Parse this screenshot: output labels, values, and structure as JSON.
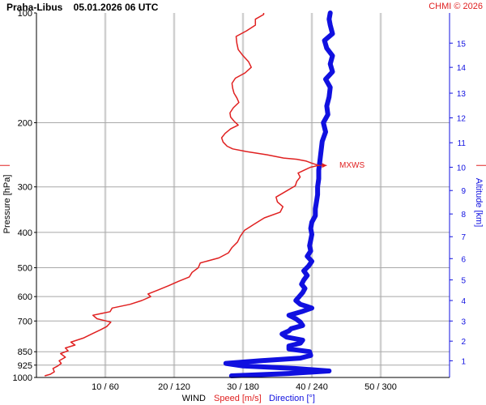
{
  "header": {
    "station_time": "Praha-Libus    05.01.2026 06 UTC",
    "copyright": "CHMI © 2026"
  },
  "colors": {
    "speed": "#e02020",
    "direction": "#1010e0",
    "grid": "#a8a8a8",
    "vgrid": "#d0d0d0"
  },
  "chart_data": {
    "type": "line",
    "title": "Praha-Libus    05.01.2026 06 UTC",
    "pressure_axis": {
      "label": "Pressure [hPa]",
      "scale": "log",
      "range": [
        1000,
        100
      ],
      "ticks": [
        100,
        200,
        300,
        400,
        500,
        600,
        700,
        850,
        925,
        1000
      ],
      "tick_labels": [
        "100",
        "200",
        "300",
        "400",
        "500",
        "600",
        "700",
        "850",
        "925",
        "1000"
      ]
    },
    "wind_axis": {
      "label": "WIND",
      "speed_label": "Speed [m/s]",
      "direction_label": "Direction [°]",
      "speed_range": [
        0,
        60
      ],
      "direction_range": [
        0,
        360
      ],
      "ticks_speed": [
        10,
        20,
        30,
        40,
        50
      ],
      "tick_labels": [
        "10 / 60",
        "20 / 120",
        "30 / 180",
        "40 / 240",
        "50 / 300"
      ]
    },
    "altitude_axis": {
      "label": "Altitude [km]",
      "ticks": [
        1,
        2,
        3,
        4,
        5,
        6,
        7,
        8,
        9,
        10,
        11,
        12,
        13,
        14,
        15
      ],
      "tick_labels": [
        "1",
        "2",
        "3",
        "4",
        "5",
        "6",
        "7",
        "8",
        "9",
        "10",
        "11",
        "12",
        "13",
        "14",
        "15"
      ],
      "tick_pressures": [
        900,
        795,
        700,
        615,
        540,
        472,
        411,
        356,
        307,
        265,
        227,
        194,
        166,
        141,
        121
      ]
    },
    "annotations": [
      {
        "text": "MXWS",
        "pressure": 262,
        "speed": 41
      }
    ],
    "series": [
      {
        "name": "Speed [m/s]",
        "unit": "m/s",
        "points": [
          [
            990,
            1.2
          ],
          [
            980,
            2.0
          ],
          [
            965,
            2.6
          ],
          [
            945,
            2.4
          ],
          [
            930,
            3.1
          ],
          [
            915,
            3.6
          ],
          [
            900,
            3.3
          ],
          [
            880,
            4.2
          ],
          [
            860,
            3.5
          ],
          [
            845,
            4.6
          ],
          [
            830,
            4.2
          ],
          [
            815,
            5.6
          ],
          [
            800,
            5.0
          ],
          [
            780,
            6.8
          ],
          [
            760,
            8.0
          ],
          [
            740,
            9.3
          ],
          [
            725,
            10.2
          ],
          [
            705,
            10.8
          ],
          [
            690,
            8.8
          ],
          [
            675,
            8.2
          ],
          [
            660,
            10.7
          ],
          [
            645,
            11.0
          ],
          [
            630,
            13.6
          ],
          [
            615,
            15.3
          ],
          [
            600,
            16.6
          ],
          [
            590,
            16.2
          ],
          [
            575,
            17.7
          ],
          [
            560,
            19.2
          ],
          [
            545,
            20.6
          ],
          [
            530,
            22.2
          ],
          [
            515,
            22.6
          ],
          [
            500,
            23.5
          ],
          [
            485,
            23.8
          ],
          [
            470,
            26.5
          ],
          [
            455,
            27.9
          ],
          [
            440,
            28.4
          ],
          [
            425,
            29.2
          ],
          [
            410,
            29.6
          ],
          [
            395,
            30.2
          ],
          [
            380,
            31.6
          ],
          [
            365,
            33.1
          ],
          [
            352,
            35.4
          ],
          [
            340,
            35.8
          ],
          [
            330,
            35.0
          ],
          [
            320,
            34.8
          ],
          [
            308,
            36.3
          ],
          [
            298,
            37.6
          ],
          [
            290,
            37.8
          ],
          [
            282,
            38.3
          ],
          [
            275,
            38.0
          ],
          [
            270,
            38.9
          ],
          [
            265,
            39.8
          ],
          [
            262,
            41.0
          ],
          [
            258,
            39.9
          ],
          [
            255,
            39.2
          ],
          [
            252,
            37.8
          ],
          [
            250,
            35.9
          ],
          [
            245,
            33.5
          ],
          [
            240,
            30.5
          ],
          [
            236,
            28.5
          ],
          [
            232,
            27.7
          ],
          [
            226,
            27.1
          ],
          [
            220,
            26.9
          ],
          [
            214,
            27.4
          ],
          [
            208,
            28.2
          ],
          [
            203,
            29.3
          ],
          [
            198,
            28.7
          ],
          [
            193,
            28.2
          ],
          [
            188,
            28.1
          ],
          [
            182,
            28.6
          ],
          [
            176,
            29.4
          ],
          [
            171,
            29.1
          ],
          [
            166,
            28.7
          ],
          [
            161,
            28.5
          ],
          [
            156,
            28.4
          ],
          [
            151,
            28.9
          ],
          [
            146,
            30.3
          ],
          [
            141,
            31.2
          ],
          [
            136,
            30.8
          ],
          [
            131,
            30.0
          ],
          [
            126,
            29.3
          ],
          [
            121,
            29.1
          ],
          [
            116,
            29.0
          ],
          [
            112,
            30.5
          ],
          [
            108,
            31.8
          ],
          [
            104,
            31.8
          ],
          [
            101,
            33.0
          ],
          [
            100,
            33.0
          ]
        ]
      },
      {
        "name": "Direction [°]",
        "unit": "°",
        "points": [
          [
            990,
            170
          ],
          [
            975,
            220
          ],
          [
            960,
            255
          ],
          [
            945,
            225
          ],
          [
            930,
            180
          ],
          [
            915,
            165
          ],
          [
            900,
            195
          ],
          [
            885,
            230
          ],
          [
            870,
            239
          ],
          [
            850,
            238
          ],
          [
            835,
            220
          ],
          [
            820,
            220
          ],
          [
            805,
            230
          ],
          [
            790,
            232
          ],
          [
            775,
            218
          ],
          [
            760,
            214
          ],
          [
            745,
            220
          ],
          [
            735,
            222
          ],
          [
            720,
            232
          ],
          [
            705,
            230
          ],
          [
            690,
            226
          ],
          [
            675,
            220
          ],
          [
            660,
            231
          ],
          [
            645,
            240
          ],
          [
            630,
            230
          ],
          [
            615,
            226
          ],
          [
            600,
            229
          ],
          [
            585,
            232
          ],
          [
            570,
            234
          ],
          [
            555,
            231
          ],
          [
            540,
            233
          ],
          [
            525,
            236
          ],
          [
            510,
            233
          ],
          [
            495,
            237
          ],
          [
            480,
            240
          ],
          [
            465,
            236
          ],
          [
            450,
            239
          ],
          [
            435,
            238
          ],
          [
            420,
            239
          ],
          [
            405,
            240
          ],
          [
            390,
            239
          ],
          [
            375,
            240
          ],
          [
            360,
            243
          ],
          [
            345,
            243
          ],
          [
            330,
            244
          ],
          [
            315,
            245
          ],
          [
            300,
            245
          ],
          [
            285,
            246
          ],
          [
            270,
            246
          ],
          [
            255,
            247
          ],
          [
            240,
            248
          ],
          [
            225,
            249
          ],
          [
            212,
            252
          ],
          [
            200,
            250
          ],
          [
            190,
            254
          ],
          [
            180,
            253
          ],
          [
            170,
            255
          ],
          [
            160,
            256
          ],
          [
            152,
            252
          ],
          [
            145,
            258
          ],
          [
            138,
            256
          ],
          [
            131,
            258
          ],
          [
            125,
            253
          ],
          [
            119,
            251
          ],
          [
            114,
            258
          ],
          [
            108,
            256
          ],
          [
            104,
            255
          ],
          [
            100,
            256
          ]
        ]
      }
    ],
    "grid": true
  }
}
